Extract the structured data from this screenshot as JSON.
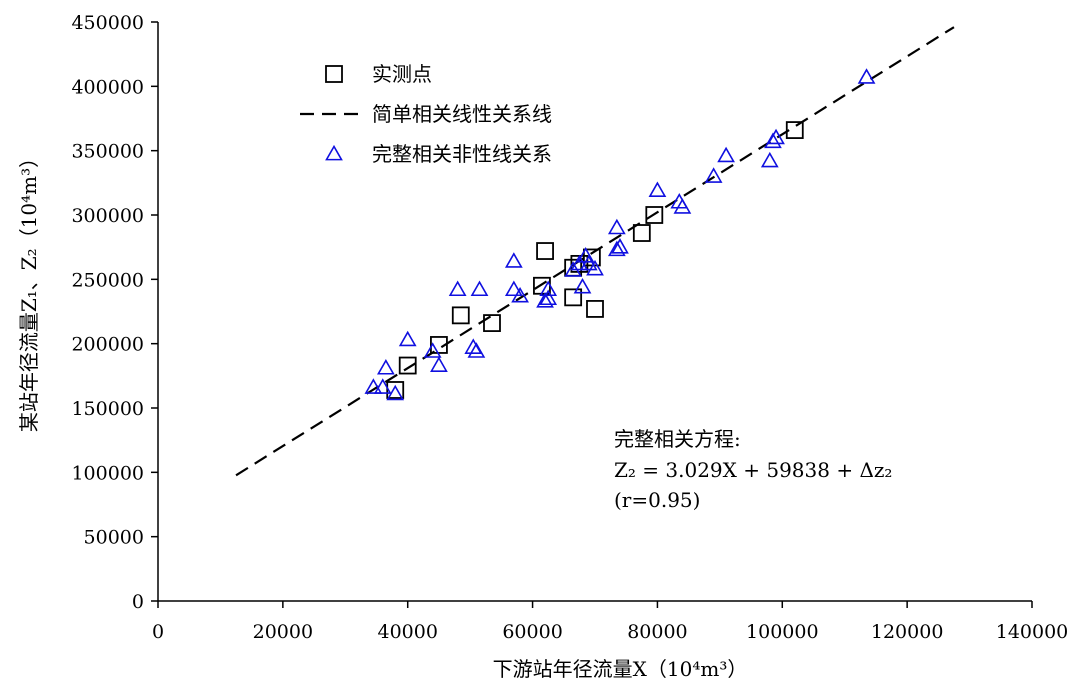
{
  "chart_data": {
    "type": "scatter",
    "xlabel": "下游站年径流量X（10⁴m³）",
    "ylabel": "某站年径流量Z₁、Z₂（10⁴m³）",
    "xlim": [
      0,
      140000
    ],
    "ylim": [
      0,
      450000
    ],
    "xticks": [
      "0",
      "20000",
      "40000",
      "60000",
      "80000",
      "100000",
      "120000",
      "140000"
    ],
    "yticks": [
      "0",
      "50000",
      "100000",
      "150000",
      "200000",
      "250000",
      "300000",
      "350000",
      "400000",
      "450000"
    ],
    "grid": false,
    "legend_position": "top-left",
    "legend": [
      {
        "label": "实测点",
        "marker": "square"
      },
      {
        "label": "简单相关线性关系线",
        "marker": "dashed-line"
      },
      {
        "label": "完整相关非性线关系",
        "marker": "triangle"
      }
    ],
    "annotation": {
      "line1": "完整相关方程:",
      "line2": "Z₂ = 3.029X + 59838 + Δz₂",
      "line3": "(r=0.95)"
    },
    "colors": {
      "measured": "#000000",
      "line": "#000000",
      "triangles": "#1010e0"
    },
    "series": [
      {
        "name": "实测点",
        "kind": "scatter",
        "marker": "square",
        "points": [
          [
            38000,
            164000
          ],
          [
            40000,
            183000
          ],
          [
            45000,
            199000
          ],
          [
            48500,
            222000
          ],
          [
            53500,
            216000
          ],
          [
            61500,
            245000
          ],
          [
            62000,
            272000
          ],
          [
            66500,
            236000
          ],
          [
            66500,
            259000
          ],
          [
            67500,
            262000
          ],
          [
            69500,
            267000
          ],
          [
            70000,
            227000
          ],
          [
            77500,
            286000
          ],
          [
            79500,
            300000
          ],
          [
            102000,
            366000
          ]
        ]
      },
      {
        "name": "简单相关线性关系线",
        "kind": "line",
        "dash": true,
        "points": [
          [
            12500,
            97700
          ],
          [
            127500,
            446000
          ]
        ]
      },
      {
        "name": "完整相关非性线关系",
        "kind": "scatter",
        "marker": "triangle",
        "points": [
          [
            34500,
            166000
          ],
          [
            36000,
            166000
          ],
          [
            36500,
            181000
          ],
          [
            38000,
            161000
          ],
          [
            40000,
            203000
          ],
          [
            44000,
            194000
          ],
          [
            45000,
            183000
          ],
          [
            48000,
            242000
          ],
          [
            50500,
            197000
          ],
          [
            51000,
            194000
          ],
          [
            51500,
            242000
          ],
          [
            57000,
            264000
          ],
          [
            57000,
            242000
          ],
          [
            58000,
            237000
          ],
          [
            62000,
            233000
          ],
          [
            62500,
            242000
          ],
          [
            62500,
            235000
          ],
          [
            66500,
            257000
          ],
          [
            67500,
            262000
          ],
          [
            68000,
            244000
          ],
          [
            68500,
            268000
          ],
          [
            69000,
            262000
          ],
          [
            70000,
            258000
          ],
          [
            73500,
            273000
          ],
          [
            73500,
            290000
          ],
          [
            74000,
            275000
          ],
          [
            80000,
            319000
          ],
          [
            83500,
            310000
          ],
          [
            84000,
            306000
          ],
          [
            89000,
            330000
          ],
          [
            91000,
            346000
          ],
          [
            98000,
            342000
          ],
          [
            98500,
            357000
          ],
          [
            99000,
            360000
          ],
          [
            113500,
            407000
          ]
        ]
      }
    ]
  }
}
